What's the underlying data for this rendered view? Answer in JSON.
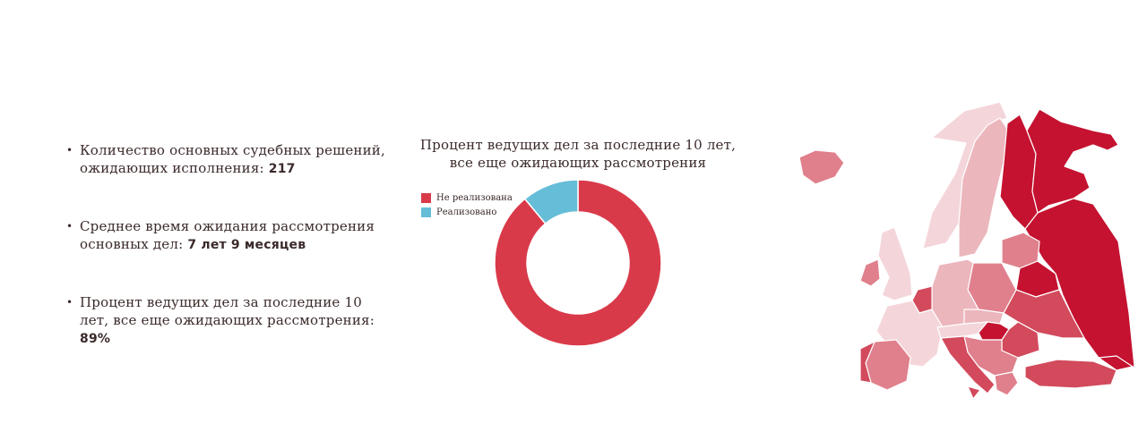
{
  "stats": [
    {
      "label": "Количество основных судебных решений, ожидающих исполнения: ",
      "value": "217"
    },
    {
      "label": "Среднее время ожидания рассмотрения основных дел: ",
      "value": "7 лет 9 месяцев"
    },
    {
      "label": "Процент ведущих дел за последние 10 лет, все еще ожидающих рассмотрения: ",
      "value": "89%"
    }
  ],
  "chart_data": {
    "type": "pie",
    "title": "Процент ведущих дел за последние 10 лет, все еще ожидающих рассмотрения",
    "categories": [
      "Не реализована",
      "Реализовано"
    ],
    "values": [
      89,
      11
    ],
    "colors": [
      "#d93a4a",
      "#66bdd8"
    ],
    "donut": true,
    "legend": "top-left"
  },
  "map": {
    "icon": "europe-map",
    "colors": {
      "darkest": "#c41230",
      "dark": "#d24a5c",
      "medium": "#e0808c",
      "light": "#ecb6bd",
      "lightest": "#f4d6da"
    }
  }
}
